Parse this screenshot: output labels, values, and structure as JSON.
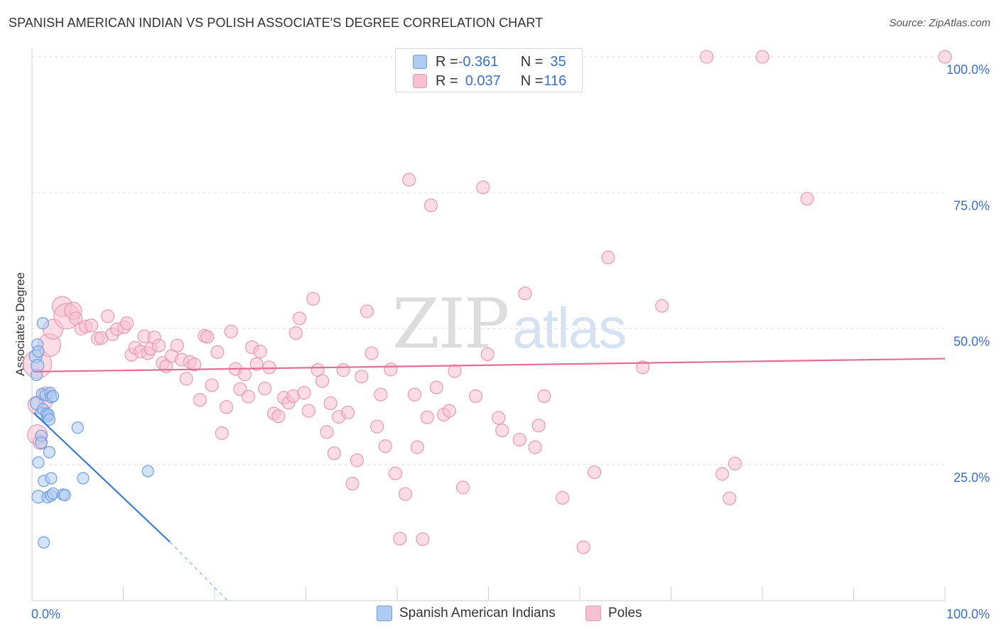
{
  "title": "SPANISH AMERICAN INDIAN VS POLISH ASSOCIATE'S DEGREE CORRELATION CHART",
  "source": "Source: ZipAtlas.com",
  "watermark": {
    "zip": "ZIP",
    "atlas": "atlas"
  },
  "colors": {
    "blue_fill": "#aecbf2",
    "blue_stroke": "#6c9ee0",
    "blue_line": "#3a7bd5",
    "pink_fill": "#f7bfd0",
    "pink_stroke": "#e59ab3",
    "pink_line": "#e46d97",
    "axis_text": "#3a6fc4",
    "grid": "#e2e2e2"
  },
  "legend_top": [
    {
      "r_label": "R = ",
      "r_value": "-0.361",
      "n_label": "N = ",
      "n_value": "35",
      "color": "blue"
    },
    {
      "r_label": "R = ",
      "r_value": "0.037",
      "n_label": "N = ",
      "n_value": "116",
      "color": "pink"
    }
  ],
  "legend_bottom": [
    {
      "label": "Spanish American Indians",
      "color": "blue"
    },
    {
      "label": "Poles",
      "color": "pink"
    }
  ],
  "chart_data": {
    "type": "scatter",
    "title": "SPANISH AMERICAN INDIAN VS POLISH ASSOCIATE'S DEGREE CORRELATION CHART",
    "xlabel": "",
    "ylabel": "Associate's Degree",
    "xlim": [
      0,
      100
    ],
    "ylim": [
      0,
      100
    ],
    "x_tick_labels": [
      "0.0%",
      "100.0%"
    ],
    "y_tick_labels": [
      {
        "value": 25,
        "label": "25.0%"
      },
      {
        "value": 50,
        "label": "50.0%"
      },
      {
        "value": 75,
        "label": "75.0%"
      },
      {
        "value": 100,
        "label": "100.0%"
      }
    ],
    "series": [
      {
        "name": "Spanish American Indians",
        "color": "blue",
        "r": -0.361,
        "n": 35,
        "trend": {
          "x0": 0.2,
          "y0": 34.5,
          "x1": 15.1,
          "y1": 10.8,
          "dash_to_x": 21.4,
          "dash_to_y": 0
        },
        "points": [
          [
            0.4,
            44.9,
            9
          ],
          [
            0.5,
            36.3,
            9
          ],
          [
            0.5,
            41.5,
            8
          ],
          [
            0.6,
            43.2,
            9
          ],
          [
            0.6,
            47.1,
            8
          ],
          [
            0.7,
            45.8,
            8
          ],
          [
            0.7,
            25.4,
            8
          ],
          [
            0.7,
            19.1,
            9
          ],
          [
            1.0,
            34.5,
            8
          ],
          [
            1.0,
            30.3,
            8
          ],
          [
            1.0,
            29.0,
            8
          ],
          [
            1.1,
            38.0,
            8
          ],
          [
            1.2,
            51.0,
            8
          ],
          [
            1.2,
            35.2,
            8
          ],
          [
            1.3,
            22.0,
            8
          ],
          [
            1.3,
            10.7,
            8
          ],
          [
            1.5,
            37.8,
            8
          ],
          [
            1.6,
            34.4,
            8
          ],
          [
            1.7,
            33.8,
            8
          ],
          [
            1.7,
            19.0,
            8
          ],
          [
            1.8,
            34.2,
            8
          ],
          [
            1.9,
            33.3,
            8
          ],
          [
            1.9,
            27.3,
            8
          ],
          [
            2.0,
            38.2,
            8
          ],
          [
            2.1,
            19.3,
            8
          ],
          [
            2.1,
            22.5,
            8
          ],
          [
            2.1,
            37.4,
            8
          ],
          [
            2.3,
            37.6,
            8
          ],
          [
            2.3,
            19.7,
            8
          ],
          [
            3.4,
            19.5,
            8
          ],
          [
            3.6,
            19.4,
            8
          ],
          [
            5.0,
            31.8,
            8
          ],
          [
            5.6,
            22.5,
            8
          ],
          [
            12.7,
            23.8,
            8
          ]
        ]
      },
      {
        "name": "Poles",
        "color": "pink",
        "r": 0.037,
        "n": 116,
        "trend": {
          "x0": 0.2,
          "y0": 42.1,
          "x1": 100,
          "y1": 44.5
        },
        "points": [
          [
            0.5,
            36.0,
            12
          ],
          [
            0.6,
            30.5,
            14
          ],
          [
            0.6,
            43.5,
            20
          ],
          [
            0.9,
            29.1,
            10
          ],
          [
            1.5,
            38.0,
            10
          ],
          [
            1.5,
            36.4,
            9
          ],
          [
            1.9,
            47.0,
            16
          ],
          [
            2.3,
            49.9,
            14
          ],
          [
            3.3,
            54.1,
            14
          ],
          [
            3.8,
            52.3,
            18
          ],
          [
            4.5,
            53.3,
            12
          ],
          [
            4.8,
            51.9,
            9
          ],
          [
            5.4,
            50.0,
            9
          ],
          [
            5.9,
            50.4,
            9
          ],
          [
            6.5,
            50.6,
            9
          ],
          [
            7.2,
            48.2,
            9
          ],
          [
            7.6,
            48.3,
            9
          ],
          [
            8.3,
            52.3,
            9
          ],
          [
            8.8,
            49.0,
            9
          ],
          [
            9.3,
            49.9,
            9
          ],
          [
            10.1,
            50.3,
            9
          ],
          [
            10.4,
            51.0,
            9
          ],
          [
            10.9,
            45.2,
            9
          ],
          [
            11.3,
            46.5,
            9
          ],
          [
            11.9,
            45.8,
            9
          ],
          [
            12.3,
            48.6,
            9
          ],
          [
            12.7,
            45.5,
            9
          ],
          [
            13.0,
            46.3,
            9
          ],
          [
            13.4,
            48.4,
            9
          ],
          [
            13.9,
            46.9,
            9
          ],
          [
            14.3,
            43.7,
            9
          ],
          [
            14.7,
            43.1,
            9
          ],
          [
            15.3,
            45.0,
            9
          ],
          [
            15.9,
            46.9,
            9
          ],
          [
            16.4,
            44.3,
            9
          ],
          [
            16.9,
            40.8,
            9
          ],
          [
            17.3,
            43.9,
            9
          ],
          [
            17.8,
            43.4,
            9
          ],
          [
            18.4,
            36.9,
            9
          ],
          [
            18.9,
            48.7,
            9
          ],
          [
            19.2,
            48.5,
            9
          ],
          [
            19.7,
            39.6,
            9
          ],
          [
            20.3,
            45.7,
            9
          ],
          [
            20.8,
            30.8,
            9
          ],
          [
            21.3,
            35.6,
            9
          ],
          [
            21.8,
            49.5,
            9
          ],
          [
            22.3,
            42.6,
            9
          ],
          [
            22.8,
            38.9,
            9
          ],
          [
            23.3,
            41.6,
            9
          ],
          [
            23.7,
            37.5,
            9
          ],
          [
            24.1,
            46.6,
            9
          ],
          [
            24.6,
            43.5,
            9
          ],
          [
            25.0,
            45.8,
            9
          ],
          [
            25.5,
            39.0,
            9
          ],
          [
            26.0,
            42.9,
            9
          ],
          [
            26.5,
            34.4,
            9
          ],
          [
            27.0,
            33.9,
            9
          ],
          [
            27.6,
            37.3,
            9
          ],
          [
            28.1,
            36.4,
            9
          ],
          [
            28.6,
            37.6,
            9
          ],
          [
            28.9,
            49.2,
            9
          ],
          [
            29.3,
            51.9,
            9
          ],
          [
            29.8,
            38.2,
            9
          ],
          [
            30.3,
            34.9,
            9
          ],
          [
            30.8,
            55.5,
            9
          ],
          [
            31.3,
            42.4,
            9
          ],
          [
            31.8,
            40.4,
            9
          ],
          [
            32.3,
            31.0,
            9
          ],
          [
            32.7,
            36.3,
            9
          ],
          [
            33.1,
            27.1,
            9
          ],
          [
            33.6,
            33.8,
            9
          ],
          [
            34.1,
            42.4,
            9
          ],
          [
            34.6,
            34.6,
            9
          ],
          [
            35.1,
            21.5,
            9
          ],
          [
            35.6,
            25.8,
            9
          ],
          [
            36.1,
            41.2,
            9
          ],
          [
            36.7,
            53.2,
            9
          ],
          [
            37.2,
            45.5,
            9
          ],
          [
            37.8,
            32.0,
            9
          ],
          [
            38.2,
            37.9,
            9
          ],
          [
            38.7,
            28.4,
            9
          ],
          [
            39.3,
            42.5,
            9
          ],
          [
            39.8,
            23.4,
            9
          ],
          [
            40.3,
            11.4,
            9
          ],
          [
            40.9,
            19.6,
            9
          ],
          [
            41.3,
            77.4,
            9
          ],
          [
            41.9,
            37.9,
            9
          ],
          [
            42.2,
            28.2,
            9
          ],
          [
            42.8,
            11.3,
            9
          ],
          [
            43.3,
            33.7,
            9
          ],
          [
            43.7,
            72.7,
            9
          ],
          [
            44.3,
            39.2,
            9
          ],
          [
            45.1,
            34.2,
            9
          ],
          [
            45.7,
            34.9,
            9
          ],
          [
            46.3,
            42.2,
            9
          ],
          [
            47.2,
            20.8,
            9
          ],
          [
            48.6,
            37.6,
            9
          ],
          [
            49.4,
            76.0,
            9
          ],
          [
            49.9,
            45.3,
            9
          ],
          [
            51.1,
            33.6,
            9
          ],
          [
            51.5,
            31.3,
            9
          ],
          [
            53.4,
            29.6,
            9
          ],
          [
            54.0,
            56.5,
            9
          ],
          [
            55.1,
            28.2,
            9
          ],
          [
            55.5,
            32.2,
            9
          ],
          [
            56.1,
            37.6,
            9
          ],
          [
            58.1,
            18.9,
            9
          ],
          [
            60.4,
            9.8,
            9
          ],
          [
            61.6,
            23.6,
            9
          ],
          [
            63.1,
            63.1,
            9
          ],
          [
            66.9,
            42.9,
            9
          ],
          [
            69.0,
            54.2,
            9
          ],
          [
            73.9,
            100.0,
            9
          ],
          [
            75.6,
            23.3,
            9
          ],
          [
            76.4,
            18.8,
            9
          ],
          [
            77.0,
            25.2,
            9
          ],
          [
            80.0,
            100.0,
            9
          ],
          [
            84.9,
            73.9,
            9
          ],
          [
            100.0,
            100.0,
            9
          ]
        ]
      }
    ]
  }
}
